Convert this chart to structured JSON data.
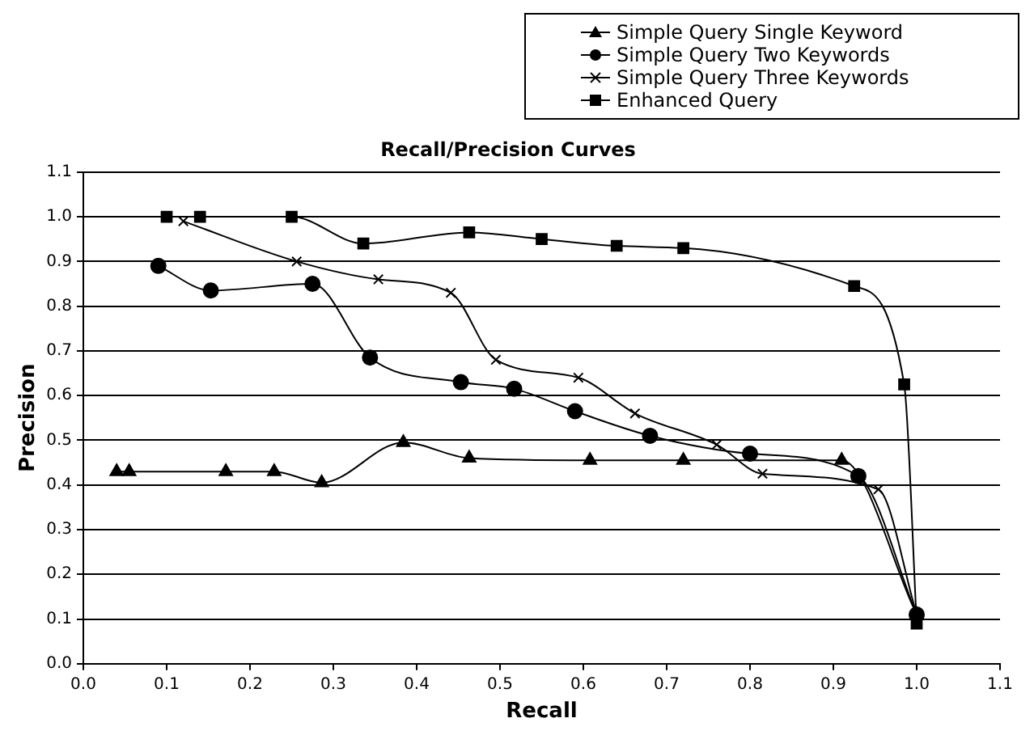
{
  "chart_data": {
    "type": "line",
    "title": "Recall/Precision Curves",
    "xlabel": "Recall",
    "ylabel": "Precision",
    "xlim": [
      0,
      1.1
    ],
    "xticks": [
      {
        "value": 0,
        "label": "0.0"
      },
      0.1,
      0.2,
      0.3,
      0.4,
      0.5,
      0.6,
      0.7,
      0.8,
      0.9,
      {
        "value": 1,
        "label": "1.0"
      },
      1.1
    ],
    "ylim": [
      0,
      1.1
    ],
    "yticks": [
      {
        "value": 0,
        "label": "0.0"
      },
      0.1,
      0.2,
      0.3,
      0.4,
      0.5,
      0.6,
      0.7,
      0.8,
      0.9,
      {
        "value": 1,
        "label": "1.0"
      },
      1.1
    ],
    "grid": "y",
    "legend": "top right",
    "line_style": "solid",
    "series": [
      {
        "name": "Simple Query Single Keyword",
        "color": "#000000",
        "marker": "triangle",
        "x": [
          0.04,
          0.055,
          0.171,
          0.229,
          0.286,
          0.384,
          0.463,
          0.608,
          0.72,
          0.91,
          1.0
        ],
        "values": [
          0.43,
          0.43,
          0.43,
          0.43,
          0.405,
          0.495,
          0.46,
          0.455,
          0.455,
          0.455,
          0.11
        ]
      },
      {
        "name": "Simple Query Two Keywords",
        "color": "#000000",
        "marker": "circle",
        "x": [
          0.09,
          0.153,
          0.275,
          0.344,
          0.453,
          0.517,
          0.59,
          0.68,
          0.8,
          0.93,
          1.0
        ],
        "values": [
          0.89,
          0.835,
          0.85,
          0.685,
          0.63,
          0.615,
          0.565,
          0.51,
          0.47,
          0.42,
          0.11
        ]
      },
      {
        "name": "Simple Query Three Keywords",
        "color": "#000000",
        "marker": "cross",
        "x": [
          0.12,
          0.256,
          0.354,
          0.441,
          0.495,
          0.594,
          0.662,
          0.76,
          0.815,
          0.954,
          1.0
        ],
        "values": [
          0.99,
          0.9,
          0.86,
          0.83,
          0.68,
          0.64,
          0.56,
          0.49,
          0.425,
          0.39,
          0.11
        ]
      },
      {
        "name": "Enhanced Query",
        "color": "#000000",
        "marker": "square",
        "x": [
          0.1,
          0.14,
          0.25,
          0.336,
          0.463,
          0.55,
          0.64,
          0.72,
          0.925,
          0.985,
          1.0
        ],
        "values": [
          1.0,
          1.0,
          1.0,
          0.94,
          0.965,
          0.95,
          0.935,
          0.93,
          0.845,
          0.625,
          0.09
        ]
      }
    ]
  }
}
